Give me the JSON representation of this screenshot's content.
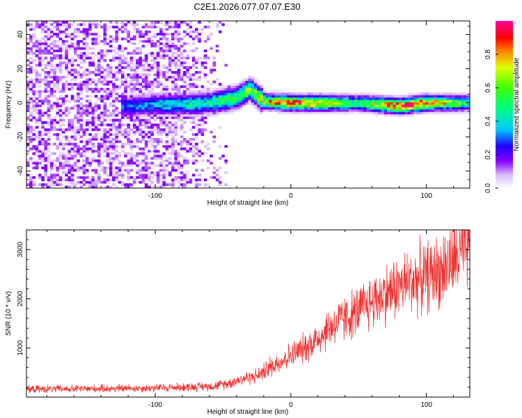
{
  "title": "C2E1.2026.077.07.07.E30",
  "chart_data": [
    {
      "type": "heatmap",
      "xlabel": "Height of straight line (km)",
      "ylabel": "Frequency (Hz)",
      "xlim": [
        -195,
        132
      ],
      "ylim": [
        -50,
        48
      ],
      "xticks": [
        -100,
        0,
        100
      ],
      "yticks": [
        -40,
        -20,
        0,
        20,
        40
      ],
      "colorbar": {
        "label": "Normalized spectral amplitude",
        "range": [
          0,
          1
        ],
        "ticks": [
          0.0,
          0.2,
          0.4,
          0.6,
          0.8
        ],
        "colors": [
          "#ffffff",
          "#d9b8ff",
          "#8a00ff",
          "#0000ff",
          "#00e0ff",
          "#00ff40",
          "#d0ff00",
          "#ffa000",
          "#ff0000",
          "#ff00a0"
        ]
      },
      "signal_trace": {
        "description_points_x": [
          -120,
          -100,
          -80,
          -60,
          -40,
          -30,
          -20,
          0,
          20,
          50,
          80,
          100,
          130
        ],
        "frequency_hz": [
          -2,
          -1,
          -1,
          0,
          3,
          8,
          1,
          0,
          0,
          0,
          -2,
          0,
          0
        ],
        "peak_amplitude": [
          0.3,
          0.35,
          0.4,
          0.45,
          0.55,
          0.6,
          0.7,
          0.85,
          0.8,
          0.5,
          0.9,
          0.85,
          0.5
        ]
      },
      "noise_region_x": [
        -195,
        -45
      ]
    },
    {
      "type": "line",
      "xlabel": "Height of straight line (km)",
      "ylabel": "SNR (10 * v/v)",
      "xlim": [
        -195,
        132
      ],
      "ylim": [
        0,
        3400
      ],
      "xticks": [
        -100,
        0,
        100
      ],
      "yticks": [
        1000,
        2000,
        3000
      ],
      "series": [
        {
          "name": "SNR",
          "color": "#ee3333",
          "x": [
            -195,
            -150,
            -100,
            -70,
            -55,
            -45,
            -35,
            -25,
            -20,
            -15,
            -10,
            0,
            10,
            20,
            30,
            40,
            50,
            60,
            70,
            80,
            90,
            100,
            110,
            120,
            125,
            130
          ],
          "y": [
            160,
            170,
            185,
            210,
            230,
            290,
            380,
            430,
            520,
            600,
            700,
            850,
            1000,
            1200,
            1450,
            1600,
            1750,
            1950,
            2100,
            2250,
            2380,
            2450,
            2580,
            2750,
            2900,
            2980
          ]
        }
      ]
    }
  ]
}
